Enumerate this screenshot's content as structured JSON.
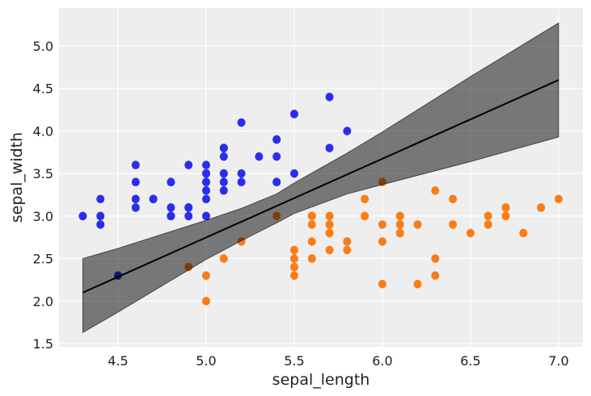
{
  "chart_data": {
    "type": "scatter",
    "xlabel": "sepal_length",
    "ylabel": "sepal_width",
    "xlim": [
      4.165,
      7.138
    ],
    "ylim": [
      1.462,
      5.446
    ],
    "grid": true,
    "background": "#eeeeee",
    "xticks": [
      "4.5",
      "5.0",
      "5.5",
      "6.0",
      "6.5",
      "7.0"
    ],
    "yticks": [
      "1.5",
      "2.0",
      "2.5",
      "3.0",
      "3.5",
      "4.0",
      "4.5",
      "5.0"
    ],
    "series": [
      {
        "color": "#2a2eec",
        "points": [
          [
            5.1,
            3.5
          ],
          [
            4.9,
            3.0
          ],
          [
            4.7,
            3.2
          ],
          [
            4.6,
            3.1
          ],
          [
            5.0,
            3.6
          ],
          [
            5.4,
            3.9
          ],
          [
            4.6,
            3.4
          ],
          [
            5.0,
            3.4
          ],
          [
            4.4,
            2.9
          ],
          [
            4.9,
            3.1
          ],
          [
            5.4,
            3.7
          ],
          [
            4.8,
            3.4
          ],
          [
            4.8,
            3.0
          ],
          [
            4.3,
            3.0
          ],
          [
            5.8,
            4.0
          ],
          [
            5.7,
            4.4
          ],
          [
            5.4,
            3.9
          ],
          [
            5.1,
            3.5
          ],
          [
            5.7,
            3.8
          ],
          [
            5.1,
            3.8
          ],
          [
            5.4,
            3.4
          ],
          [
            5.1,
            3.7
          ],
          [
            4.6,
            3.6
          ],
          [
            5.1,
            3.3
          ],
          [
            4.8,
            3.4
          ],
          [
            5.0,
            3.0
          ],
          [
            5.0,
            3.4
          ],
          [
            5.2,
            3.5
          ],
          [
            5.2,
            3.4
          ],
          [
            4.7,
            3.2
          ],
          [
            4.8,
            3.1
          ],
          [
            5.4,
            3.4
          ],
          [
            5.2,
            4.1
          ],
          [
            5.5,
            4.2
          ],
          [
            4.9,
            3.1
          ],
          [
            5.0,
            3.2
          ],
          [
            5.5,
            3.5
          ],
          [
            4.9,
            3.6
          ],
          [
            4.4,
            3.0
          ],
          [
            5.1,
            3.4
          ],
          [
            5.0,
            3.5
          ],
          [
            4.5,
            2.3
          ],
          [
            4.4,
            3.2
          ],
          [
            5.0,
            3.5
          ],
          [
            5.1,
            3.8
          ],
          [
            4.8,
            3.0
          ],
          [
            5.1,
            3.8
          ],
          [
            4.6,
            3.2
          ],
          [
            5.3,
            3.7
          ],
          [
            5.0,
            3.3
          ]
        ]
      },
      {
        "color": "#fa7c17",
        "points": [
          [
            7.0,
            3.2
          ],
          [
            6.4,
            3.2
          ],
          [
            6.9,
            3.1
          ],
          [
            5.5,
            2.3
          ],
          [
            6.5,
            2.8
          ],
          [
            5.7,
            2.8
          ],
          [
            6.3,
            3.3
          ],
          [
            4.9,
            2.4
          ],
          [
            6.6,
            2.9
          ],
          [
            5.2,
            2.7
          ],
          [
            5.0,
            2.0
          ],
          [
            5.9,
            3.0
          ],
          [
            6.0,
            2.2
          ],
          [
            6.1,
            2.9
          ],
          [
            5.6,
            2.9
          ],
          [
            6.7,
            3.1
          ],
          [
            5.6,
            3.0
          ],
          [
            5.8,
            2.7
          ],
          [
            6.2,
            2.2
          ],
          [
            5.6,
            2.5
          ],
          [
            5.9,
            3.2
          ],
          [
            6.1,
            2.8
          ],
          [
            6.3,
            2.5
          ],
          [
            6.1,
            2.8
          ],
          [
            6.4,
            2.9
          ],
          [
            6.6,
            3.0
          ],
          [
            6.8,
            2.8
          ],
          [
            6.7,
            3.0
          ],
          [
            6.0,
            2.9
          ],
          [
            5.7,
            2.6
          ],
          [
            5.5,
            2.4
          ],
          [
            5.5,
            2.4
          ],
          [
            5.8,
            2.7
          ],
          [
            6.0,
            2.7
          ],
          [
            5.4,
            3.0
          ],
          [
            6.0,
            3.4
          ],
          [
            6.7,
            3.1
          ],
          [
            6.3,
            2.3
          ],
          [
            5.6,
            3.0
          ],
          [
            5.5,
            2.5
          ],
          [
            5.5,
            2.6
          ],
          [
            6.1,
            3.0
          ],
          [
            5.8,
            2.6
          ],
          [
            5.0,
            2.3
          ],
          [
            5.6,
            2.7
          ],
          [
            5.7,
            3.0
          ],
          [
            5.7,
            2.9
          ],
          [
            6.2,
            2.9
          ],
          [
            5.1,
            2.5
          ],
          [
            5.7,
            2.8
          ]
        ]
      }
    ],
    "boundary_line": {
      "color": "#000000",
      "x": [
        4.3,
        7.0
      ],
      "y": [
        2.1,
        4.6
      ]
    },
    "band": {
      "color": "#000000",
      "opacity": 0.5,
      "x": [
        4.3,
        4.5,
        5.0,
        5.2,
        5.4,
        5.5,
        5.8,
        6.0,
        6.5,
        7.0
      ],
      "upper": [
        2.5,
        2.62,
        2.95,
        3.09,
        3.26,
        3.39,
        3.74,
        3.99,
        4.64,
        5.27
      ],
      "lower": [
        1.63,
        1.87,
        2.49,
        2.71,
        2.92,
        3.03,
        3.26,
        3.37,
        3.64,
        3.93
      ]
    }
  }
}
